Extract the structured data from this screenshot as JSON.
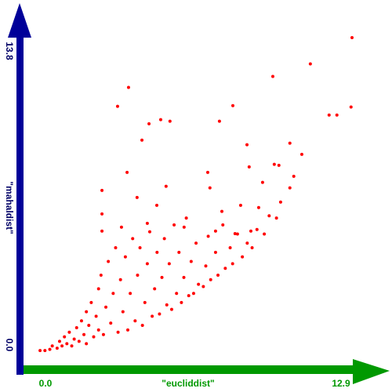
{
  "chart_data": {
    "type": "scatter",
    "xlabel": "\"eucliddist\"",
    "ylabel": "\"mahaldist\"",
    "xlim": [
      0,
      12.9
    ],
    "ylim": [
      0,
      13.8
    ],
    "xticks": [
      {
        "value": 0,
        "label": "0.0"
      },
      12.9
    ],
    "yticks": [
      {
        "value": 0,
        "label": "0.0"
      },
      13.8
    ],
    "color": "#ff0000",
    "x": [
      12.9,
      11.19,
      9.65,
      12.86,
      12.28,
      11.96,
      3.73,
      3.28,
      8.01,
      7.46,
      4.57,
      5.05,
      5.43,
      4.28,
      8.59,
      10.35,
      10.84,
      9.71,
      9.9,
      3.67,
      6.98,
      8.68,
      10.51,
      10.35,
      2.64,
      4.08,
      5.27,
      7.07,
      9.23,
      9.97,
      9.07,
      8.33,
      2.64,
      4.89,
      7.56,
      4.5,
      3.44,
      2.64,
      6.01,
      7.3,
      8.1,
      8.75,
      0.1,
      0.3,
      0.5,
      0.6,
      0.8,
      0.9,
      1.0,
      1.1,
      1.2,
      1.3,
      1.4,
      1.5,
      1.6,
      1.7,
      1.8,
      1.9,
      2.0,
      2.0,
      2.1,
      2.2,
      2.3,
      2.4,
      2.5,
      2.5,
      2.6,
      2.7,
      2.8,
      2.9,
      3.0,
      3.1,
      3.2,
      3.3,
      3.4,
      3.5,
      3.6,
      3.7,
      3.8,
      3.9,
      4.0,
      4.1,
      4.2,
      4.3,
      4.4,
      4.5,
      4.6,
      4.7,
      4.8,
      4.9,
      5.0,
      5.1,
      5.2,
      5.3,
      5.4,
      5.5,
      5.6,
      5.7,
      5.8,
      5.9,
      6.0,
      6.1,
      6.2,
      6.3,
      6.4,
      6.5,
      6.6,
      6.8,
      6.9,
      7.0,
      7.1,
      7.3,
      7.4,
      7.6,
      7.7,
      7.9,
      8.0,
      8.2,
      8.4,
      8.6,
      8.8,
      9.0,
      9.3,
      9.5,
      9.8
    ],
    "values": [
      13.8,
      12.65,
      12.1,
      10.76,
      10.41,
      10.41,
      11.62,
      10.79,
      10.82,
      10.14,
      10.03,
      10.21,
      10.14,
      9.31,
      9.11,
      9.18,
      8.69,
      8.25,
      8.21,
      7.9,
      7.9,
      8.14,
      7.73,
      7.22,
      7.11,
      6.8,
      7.29,
      7.22,
      7.46,
      6.6,
      6.36,
      6.46,
      6.08,
      6.46,
      6.19,
      5.67,
      5.5,
      5.33,
      5.5,
      5.33,
      5.22,
      5.33,
      0.1,
      0.1,
      0.15,
      0.3,
      0.2,
      0.5,
      0.3,
      0.7,
      0.4,
      0.9,
      0.3,
      0.6,
      1.1,
      0.5,
      1.4,
      0.8,
      1.8,
      0.4,
      1.2,
      2.2,
      0.7,
      1.6,
      2.8,
      1.0,
      3.4,
      0.8,
      2.0,
      4.0,
      1.3,
      2.6,
      4.6,
      0.9,
      3.2,
      1.8,
      4.2,
      1.0,
      2.6,
      5.0,
      1.4,
      3.4,
      4.6,
      1.2,
      2.2,
      3.9,
      5.3,
      1.6,
      2.8,
      4.4,
      1.7,
      3.3,
      5.0,
      2.1,
      3.9,
      1.9,
      5.6,
      2.6,
      4.4,
      2.2,
      3.3,
      5.9,
      2.5,
      4.0,
      2.6,
      4.8,
      3.0,
      2.9,
      3.8,
      5.1,
      3.2,
      4.4,
      3.4,
      5.6,
      3.7,
      4.6,
      3.9,
      5.2,
      4.2,
      4.8,
      4.6,
      5.4,
      5.2,
      6.0,
      5.9
    ]
  }
}
